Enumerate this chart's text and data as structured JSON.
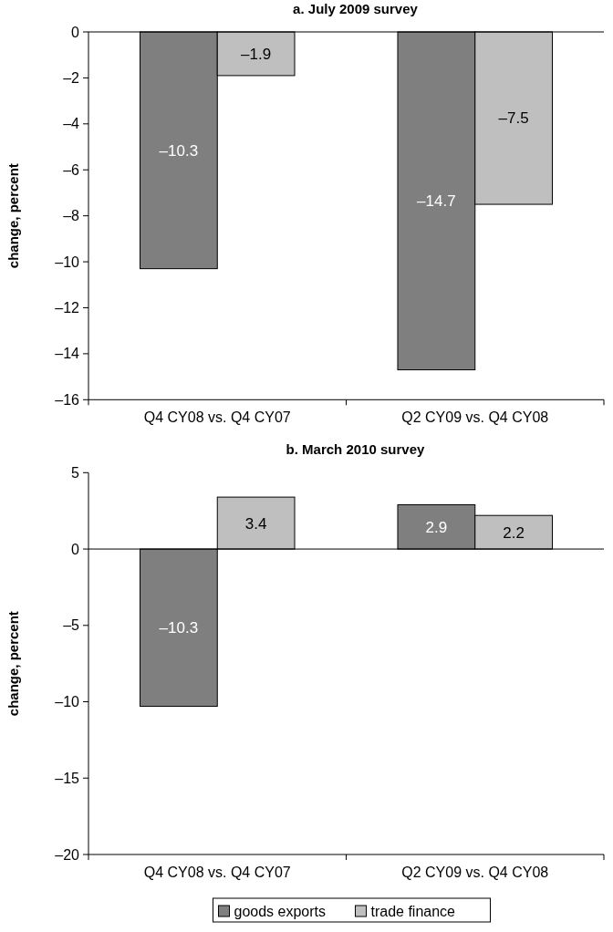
{
  "chart_data": [
    {
      "type": "bar",
      "title": "a. July 2009 survey",
      "ylabel": "change, percent",
      "categories": [
        "Q4 CY08 vs. Q4 CY07",
        "Q2 CY09 vs. Q4 CY08"
      ],
      "series": [
        {
          "color": "#7f7f7f",
          "values": [
            -10.3,
            -14.7
          ],
          "value_labels": [
            "–10.3",
            "–14.7"
          ]
        },
        {
          "color": "#bfbfbf",
          "values": [
            -1.9,
            -7.5
          ],
          "value_labels": [
            "–1.9",
            "–7.5"
          ]
        }
      ],
      "ylim": [
        -16,
        0
      ],
      "yticks": [
        {
          "value": 0,
          "label": "0"
        },
        {
          "value": -2,
          "label": "–2"
        },
        {
          "value": -4,
          "label": "–4"
        },
        {
          "value": -6,
          "label": "–6"
        },
        {
          "value": -8,
          "label": "–8"
        },
        {
          "value": -10,
          "label": "–10"
        },
        {
          "value": -12,
          "label": "–12"
        },
        {
          "value": -14,
          "label": "–14"
        },
        {
          "value": -16,
          "label": "–16"
        }
      ],
      "grid": false,
      "legend": false
    },
    {
      "type": "bar",
      "title": "b. March 2010 survey",
      "ylabel": "change, percent",
      "categories": [
        "Q4 CY08 vs. Q4 CY07",
        "Q2 CY09 vs. Q4 CY08"
      ],
      "series": [
        {
          "name": "goods exports",
          "color": "#7f7f7f",
          "values": [
            -10.3,
            2.9
          ],
          "value_labels": [
            "–10.3",
            "2.9"
          ]
        },
        {
          "name": "trade finance",
          "color": "#bfbfbf",
          "values": [
            3.4,
            2.2
          ],
          "value_labels": [
            "3.4",
            "2.2"
          ]
        }
      ],
      "ylim": [
        -20,
        5
      ],
      "yticks": [
        {
          "value": 5,
          "label": "5"
        },
        {
          "value": 0,
          "label": "0"
        },
        {
          "value": -5,
          "label": "–5"
        },
        {
          "value": -10,
          "label": "–10"
        },
        {
          "value": -15,
          "label": "–15"
        },
        {
          "value": -20,
          "label": "–20"
        }
      ],
      "legend": "bottom"
    }
  ]
}
